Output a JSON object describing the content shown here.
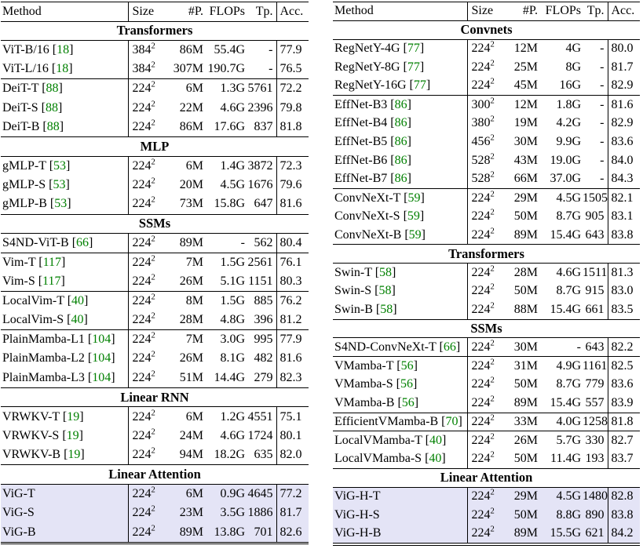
{
  "colors": {
    "citation": "#008000",
    "highlight_row_bg": "#E4E4F6",
    "rule": "#000000",
    "text": "#000000",
    "page_bg": "#ffffff"
  },
  "tables": [
    {
      "name": "left",
      "columns": [
        "Method",
        "Size",
        "#P.",
        "FLOPs",
        "Tp.",
        "Acc."
      ],
      "sections": [
        {
          "title": "Transformers",
          "groups": [
            {
              "rows": [
                {
                  "method": "ViT-B/16",
                  "cite": "18",
                  "size": "384²",
                  "params": "86M",
                  "flops": "55.4G",
                  "tp": "-",
                  "acc": "77.9",
                  "highlight": false
                },
                {
                  "method": "ViT-L/16",
                  "cite": "18",
                  "size": "384²",
                  "params": "307M",
                  "flops": "190.7G",
                  "tp": "-",
                  "acc": "76.5",
                  "highlight": false
                }
              ]
            },
            {
              "rows": [
                {
                  "method": "DeiT-T",
                  "cite": "88",
                  "size": "224²",
                  "params": "6M",
                  "flops": "1.3G",
                  "tp": "5761",
                  "acc": "72.2",
                  "highlight": false
                },
                {
                  "method": "DeiT-S",
                  "cite": "88",
                  "size": "224²",
                  "params": "22M",
                  "flops": "4.6G",
                  "tp": "2396",
                  "acc": "79.8",
                  "highlight": false
                },
                {
                  "method": "DeiT-B",
                  "cite": "88",
                  "size": "224²",
                  "params": "86M",
                  "flops": "17.6G",
                  "tp": "837",
                  "acc": "81.8",
                  "highlight": false
                }
              ]
            }
          ]
        },
        {
          "title": "MLP",
          "groups": [
            {
              "rows": [
                {
                  "method": "gMLP-T",
                  "cite": "53",
                  "size": "224²",
                  "params": "6M",
                  "flops": "1.4G",
                  "tp": "3872",
                  "acc": "72.3",
                  "highlight": false
                },
                {
                  "method": "gMLP-S",
                  "cite": "53",
                  "size": "224²",
                  "params": "20M",
                  "flops": "4.5G",
                  "tp": "1676",
                  "acc": "79.6",
                  "highlight": false
                },
                {
                  "method": "gMLP-B",
                  "cite": "53",
                  "size": "224²",
                  "params": "73M",
                  "flops": "15.8G",
                  "tp": "647",
                  "acc": "81.6",
                  "highlight": false
                }
              ]
            }
          ]
        },
        {
          "title": "SSMs",
          "groups": [
            {
              "rows": [
                {
                  "method": "S4ND-ViT-B",
                  "cite": "66",
                  "size": "224²",
                  "params": "89M",
                  "flops": "-",
                  "tp": "562",
                  "acc": "80.4",
                  "highlight": false
                }
              ]
            },
            {
              "rows": [
                {
                  "method": "Vim-T",
                  "cite": "117",
                  "size": "224²",
                  "params": "7M",
                  "flops": "1.5G",
                  "tp": "2561",
                  "acc": "76.1",
                  "highlight": false
                },
                {
                  "method": "Vim-S",
                  "cite": "117",
                  "size": "224²",
                  "params": "26M",
                  "flops": "5.1G",
                  "tp": "1151",
                  "acc": "80.3",
                  "highlight": false
                }
              ]
            },
            {
              "rows": [
                {
                  "method": "LocalVim-T",
                  "cite": "40",
                  "size": "224²",
                  "params": "8M",
                  "flops": "1.5G",
                  "tp": "885",
                  "acc": "76.2",
                  "highlight": false
                },
                {
                  "method": "LocalVim-S",
                  "cite": "40",
                  "size": "224²",
                  "params": "28M",
                  "flops": "4.8G",
                  "tp": "396",
                  "acc": "81.2",
                  "highlight": false
                }
              ]
            },
            {
              "rows": [
                {
                  "method": "PlainMamba-L1",
                  "cite": "104",
                  "size": "224²",
                  "params": "7M",
                  "flops": "3.0G",
                  "tp": "995",
                  "acc": "77.9",
                  "highlight": false
                },
                {
                  "method": "PlainMamba-L2",
                  "cite": "104",
                  "size": "224²",
                  "params": "26M",
                  "flops": "8.1G",
                  "tp": "482",
                  "acc": "81.6",
                  "highlight": false
                },
                {
                  "method": "PlainMamba-L3",
                  "cite": "104",
                  "size": "224²",
                  "params": "51M",
                  "flops": "14.4G",
                  "tp": "279",
                  "acc": "82.3",
                  "highlight": false
                }
              ]
            }
          ]
        },
        {
          "title": "Linear RNN",
          "groups": [
            {
              "rows": [
                {
                  "method": "VRWKV-T",
                  "cite": "19",
                  "size": "224²",
                  "params": "6M",
                  "flops": "1.2G",
                  "tp": "4551",
                  "acc": "75.1",
                  "highlight": false
                },
                {
                  "method": "VRWKV-S",
                  "cite": "19",
                  "size": "224²",
                  "params": "24M",
                  "flops": "4.6G",
                  "tp": "1724",
                  "acc": "80.1",
                  "highlight": false
                },
                {
                  "method": "VRWKV-B",
                  "cite": "19",
                  "size": "224²",
                  "params": "94M",
                  "flops": "18.2G",
                  "tp": "635",
                  "acc": "82.0",
                  "highlight": false
                }
              ]
            }
          ]
        },
        {
          "title": "Linear Attention",
          "groups": [
            {
              "rows": [
                {
                  "method": "ViG-T",
                  "cite": null,
                  "size": "224²",
                  "params": "6M",
                  "flops": "0.9G",
                  "tp": "4645",
                  "acc": "77.2",
                  "highlight": true
                },
                {
                  "method": "ViG-S",
                  "cite": null,
                  "size": "224²",
                  "params": "23M",
                  "flops": "3.5G",
                  "tp": "1886",
                  "acc": "81.7",
                  "highlight": true
                },
                {
                  "method": "ViG-B",
                  "cite": null,
                  "size": "224²",
                  "params": "89M",
                  "flops": "13.8G",
                  "tp": "701",
                  "acc": "82.6",
                  "highlight": true
                }
              ]
            }
          ]
        }
      ]
    },
    {
      "name": "right",
      "columns": [
        "Method",
        "Size",
        "#P.",
        "FLOPs",
        "Tp.",
        "Acc."
      ],
      "sections": [
        {
          "title": "Convnets",
          "groups": [
            {
              "rows": [
                {
                  "method": "RegNetY-4G",
                  "cite": "77",
                  "size": "224²",
                  "params": "12M",
                  "flops": "4G",
                  "tp": "-",
                  "acc": "80.0",
                  "highlight": false
                },
                {
                  "method": "RegNetY-8G",
                  "cite": "77",
                  "size": "224²",
                  "params": "25M",
                  "flops": "8G",
                  "tp": "-",
                  "acc": "81.7",
                  "highlight": false
                },
                {
                  "method": "RegNetY-16G",
                  "cite": "77",
                  "size": "224²",
                  "params": "45M",
                  "flops": "16G",
                  "tp": "-",
                  "acc": "82.9",
                  "highlight": false
                }
              ]
            },
            {
              "rows": [
                {
                  "method": "EffNet-B3",
                  "cite": "86",
                  "size": "300²",
                  "params": "12M",
                  "flops": "1.8G",
                  "tp": "-",
                  "acc": "81.6",
                  "highlight": false
                },
                {
                  "method": "EffNet-B4",
                  "cite": "86",
                  "size": "380²",
                  "params": "19M",
                  "flops": "4.2G",
                  "tp": "-",
                  "acc": "82.9",
                  "highlight": false
                },
                {
                  "method": "EffNet-B5",
                  "cite": "86",
                  "size": "456²",
                  "params": "30M",
                  "flops": "9.9G",
                  "tp": "-",
                  "acc": "83.6",
                  "highlight": false
                },
                {
                  "method": "EffNet-B6",
                  "cite": "86",
                  "size": "528²",
                  "params": "43M",
                  "flops": "19.0G",
                  "tp": "-",
                  "acc": "84.0",
                  "highlight": false
                },
                {
                  "method": "EffNet-B7",
                  "cite": "86",
                  "size": "528²",
                  "params": "66M",
                  "flops": "37.0G",
                  "tp": "-",
                  "acc": "84.3",
                  "highlight": false
                }
              ]
            },
            {
              "rows": [
                {
                  "method": "ConvNeXt-T",
                  "cite": "59",
                  "size": "224²",
                  "params": "29M",
                  "flops": "4.5G",
                  "tp": "1505",
                  "acc": "82.1",
                  "highlight": false
                },
                {
                  "method": "ConvNeXt-S",
                  "cite": "59",
                  "size": "224²",
                  "params": "50M",
                  "flops": "8.7G",
                  "tp": "905",
                  "acc": "83.1",
                  "highlight": false
                },
                {
                  "method": "ConvNeXt-B",
                  "cite": "59",
                  "size": "224²",
                  "params": "89M",
                  "flops": "15.4G",
                  "tp": "643",
                  "acc": "83.8",
                  "highlight": false
                }
              ]
            }
          ]
        },
        {
          "title": "Transformers",
          "groups": [
            {
              "rows": [
                {
                  "method": "Swin-T",
                  "cite": "58",
                  "size": "224²",
                  "params": "28M",
                  "flops": "4.6G",
                  "tp": "1511",
                  "acc": "81.3",
                  "highlight": false
                },
                {
                  "method": "Swin-S",
                  "cite": "58",
                  "size": "224²",
                  "params": "50M",
                  "flops": "8.7G",
                  "tp": "915",
                  "acc": "83.0",
                  "highlight": false
                },
                {
                  "method": "Swin-B",
                  "cite": "58",
                  "size": "224²",
                  "params": "88M",
                  "flops": "15.4G",
                  "tp": "661",
                  "acc": "83.5",
                  "highlight": false
                }
              ]
            }
          ]
        },
        {
          "title": "SSMs",
          "groups": [
            {
              "rows": [
                {
                  "method": "S4ND-ConvNeXt-T",
                  "cite": "66",
                  "size": "224²",
                  "params": "30M",
                  "flops": "-",
                  "tp": "643",
                  "acc": "82.2",
                  "highlight": false
                }
              ]
            },
            {
              "rows": [
                {
                  "method": "VMamba-T",
                  "cite": "56",
                  "size": "224²",
                  "params": "31M",
                  "flops": "4.9G",
                  "tp": "1161",
                  "acc": "82.5",
                  "highlight": false
                },
                {
                  "method": "VMamba-S",
                  "cite": "56",
                  "size": "224²",
                  "params": "50M",
                  "flops": "8.7G",
                  "tp": "779",
                  "acc": "83.6",
                  "highlight": false
                },
                {
                  "method": "VMamba-B",
                  "cite": "56",
                  "size": "224²",
                  "params": "89M",
                  "flops": "15.4G",
                  "tp": "557",
                  "acc": "83.9",
                  "highlight": false
                }
              ]
            },
            {
              "rows": [
                {
                  "method": "EfficientVMamba-B",
                  "cite": "70",
                  "size": "224²",
                  "params": "33M",
                  "flops": "4.0G",
                  "tp": "1258",
                  "acc": "81.8",
                  "highlight": false
                }
              ]
            },
            {
              "rows": [
                {
                  "method": "LocalVMamba-T",
                  "cite": "40",
                  "size": "224²",
                  "params": "26M",
                  "flops": "5.7G",
                  "tp": "330",
                  "acc": "82.7",
                  "highlight": false
                },
                {
                  "method": "LocalVMamba-S",
                  "cite": "40",
                  "size": "224²",
                  "params": "50M",
                  "flops": "11.4G",
                  "tp": "193",
                  "acc": "83.7",
                  "highlight": false
                }
              ]
            }
          ]
        },
        {
          "title": "Linear Attention",
          "groups": [
            {
              "rows": [
                {
                  "method": "ViG-H-T",
                  "cite": null,
                  "size": "224²",
                  "params": "29M",
                  "flops": "4.5G",
                  "tp": "1480",
                  "acc": "82.8",
                  "highlight": true
                },
                {
                  "method": "ViG-H-S",
                  "cite": null,
                  "size": "224²",
                  "params": "50M",
                  "flops": "8.8G",
                  "tp": "890",
                  "acc": "83.8",
                  "highlight": true
                },
                {
                  "method": "ViG-H-B",
                  "cite": null,
                  "size": "224²",
                  "params": "89M",
                  "flops": "15.5G",
                  "tp": "621",
                  "acc": "84.2",
                  "highlight": true
                }
              ]
            }
          ]
        }
      ]
    }
  ]
}
